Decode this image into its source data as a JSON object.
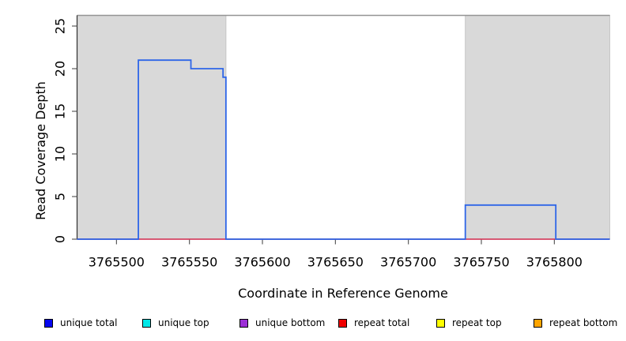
{
  "chart_data": {
    "type": "line",
    "subtype": "step-coverage-plot",
    "title": "",
    "xlabel": "Coordinate in Reference Genome",
    "ylabel": "Read Coverage Depth",
    "xlim": [
      3765473,
      3765838
    ],
    "ylim": [
      0,
      26.25
    ],
    "x_ticks": [
      3765500,
      3765550,
      3765600,
      3765650,
      3765700,
      3765750,
      3765800
    ],
    "y_ticks": [
      0,
      5,
      10,
      15,
      20,
      25
    ],
    "grid": false,
    "legend_position": "bottom",
    "repeat_regions": [
      [
        3765473,
        3765575
      ],
      [
        3765739,
        3765838
      ]
    ],
    "series": [
      {
        "name": "repeat total",
        "color": "#E0395C",
        "step_points": [
          [
            3765473,
            0
          ],
          [
            3765838,
            0
          ]
        ]
      },
      {
        "name": "unique total",
        "color": "#2E66E8",
        "step_points": [
          [
            3765473,
            0
          ],
          [
            3765515,
            0
          ],
          [
            3765515,
            21
          ],
          [
            3765551,
            21
          ],
          [
            3765551,
            20
          ],
          [
            3765573,
            20
          ],
          [
            3765573,
            19
          ],
          [
            3765575,
            19
          ],
          [
            3765575,
            0
          ],
          [
            3765739,
            0
          ],
          [
            3765739,
            4
          ],
          [
            3765801,
            4
          ],
          [
            3765801,
            0
          ],
          [
            3765838,
            0
          ]
        ]
      }
    ],
    "legend": [
      {
        "label": "unique total",
        "color": "#0707F0"
      },
      {
        "label": "unique top",
        "color": "#00E8E8"
      },
      {
        "label": "unique bottom",
        "color": "#9C2FD6"
      },
      {
        "label": "repeat total",
        "color": "#F00000"
      },
      {
        "label": "repeat top",
        "color": "#FFFF00"
      },
      {
        "label": "repeat bottom",
        "color": "#FFA500"
      }
    ],
    "colors": {
      "background": "#FFFFFF",
      "repeat_region_fill": "#D9D9D9",
      "repeat_region_border": "#C6C6C6",
      "plot_top_border": "#949494",
      "axis_line": "#303030",
      "tick": "#4D4D4D",
      "text": "#000000"
    }
  }
}
